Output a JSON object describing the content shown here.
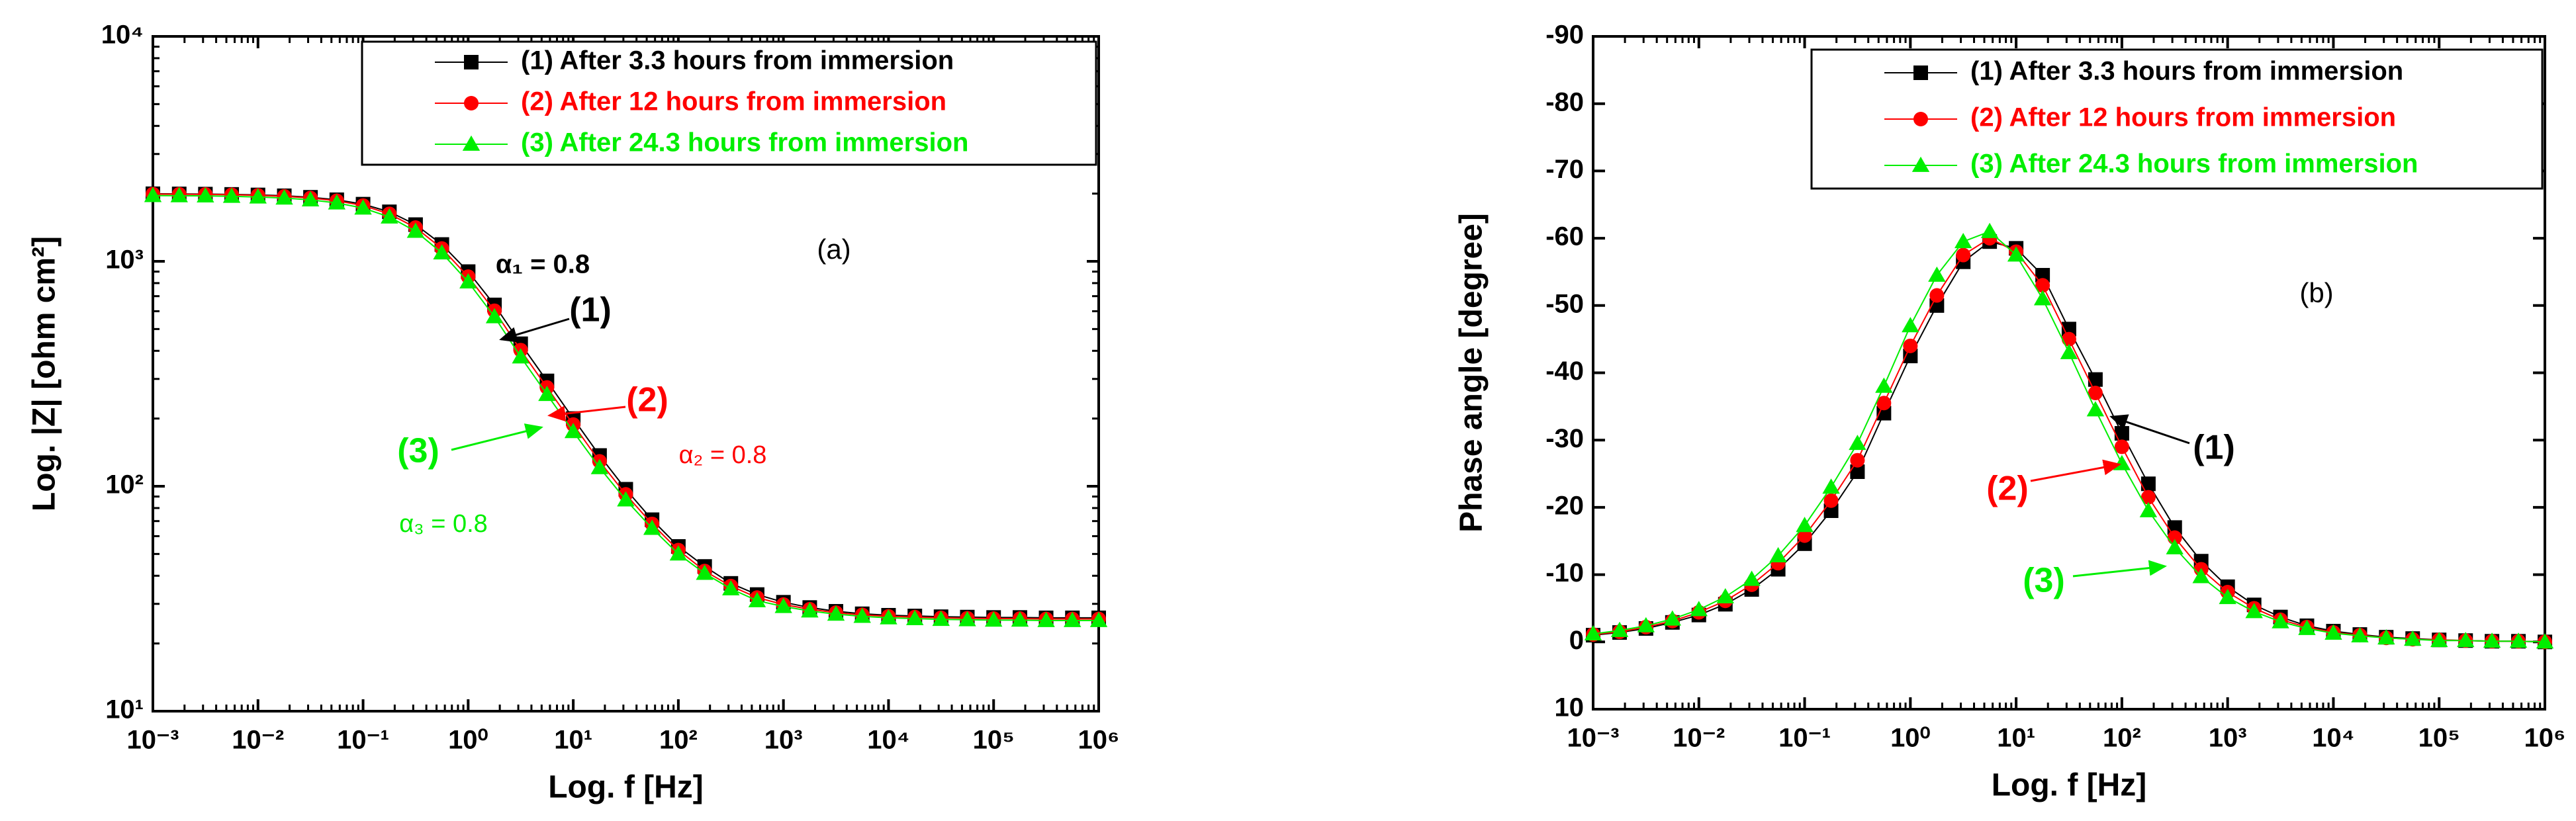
{
  "chart_data": [
    {
      "type": "line",
      "x_label": "Log. f  [Hz]",
      "y_label": "Log. |Z| [ohm cm²]",
      "xlog": true,
      "ylog": true,
      "xlim": [
        0.001,
        1000000
      ],
      "ylim": [
        10,
        10000
      ],
      "xticks": [
        {
          "value": 0.001,
          "label": "10⁻³"
        },
        {
          "value": 0.01,
          "label": "10⁻²"
        },
        {
          "value": 0.1,
          "label": "10⁻¹"
        },
        {
          "value": 1,
          "label": "10⁰"
        },
        {
          "value": 10,
          "label": "10¹"
        },
        {
          "value": 100,
          "label": "10²"
        },
        {
          "value": 1000,
          "label": "10³"
        },
        {
          "value": 10000,
          "label": "10⁴"
        },
        {
          "value": 100000,
          "label": "10⁵"
        },
        {
          "value": 1000000,
          "label": "10⁶"
        }
      ],
      "yticks": [
        {
          "value": 10,
          "label": "10¹"
        },
        {
          "value": 100,
          "label": "10²"
        },
        {
          "value": 1000,
          "label": "10³"
        },
        {
          "value": 10000,
          "label": "10⁴"
        }
      ],
      "legend": "top-right",
      "x": [
        0.001,
        0.00178,
        0.00316,
        0.00562,
        0.01,
        0.0178,
        0.0316,
        0.0562,
        0.1,
        0.178,
        0.316,
        0.562,
        1,
        1.78,
        3.16,
        5.62,
        10,
        17.8,
        31.6,
        56.2,
        100,
        178,
        316,
        562,
        1000,
        1780,
        3160,
        5620,
        10000,
        17800,
        31600,
        56200,
        100000,
        178000,
        316000,
        562000,
        1000000
      ],
      "series": [
        {
          "name": "(1) After 3.3 hours from immersion",
          "color": "#000000",
          "marker": "square",
          "values": [
            1997,
            1994,
            1990,
            1984,
            1973,
            1956,
            1926,
            1878,
            1795,
            1660,
            1456,
            1188,
            900,
            640,
            430,
            294,
            200,
            137,
            97,
            71,
            54,
            44,
            37,
            33,
            30.5,
            28.9,
            27.8,
            27.1,
            26.7,
            26.5,
            26.3,
            26.2,
            26.1,
            26.1,
            26,
            26,
            26
          ]
        },
        {
          "name": "(2) After 12 hours from immersion",
          "color": "#ff0000",
          "marker": "circle",
          "values": [
            1990,
            1987,
            1983,
            1976,
            1964,
            1945,
            1912,
            1858,
            1770,
            1625,
            1412,
            1140,
            855,
            603,
            403,
            275,
            188,
            129,
            92,
            68,
            52,
            42,
            36,
            32,
            29.8,
            28.4,
            27.4,
            26.8,
            26.4,
            26.2,
            26.0,
            25.9,
            25.8,
            25.8,
            25.7,
            25.7,
            25.7
          ]
        },
        {
          "name": "(3) After 24.3 hours from immersion",
          "color": "#00ee00",
          "marker": "triangle",
          "values": [
            1960,
            1957,
            1953,
            1945,
            1932,
            1911,
            1876,
            1818,
            1725,
            1575,
            1360,
            1090,
            810,
            567,
            376,
            256,
            175,
            121,
            87,
            65,
            50,
            41,
            35,
            31,
            29.2,
            27.9,
            27.0,
            26.4,
            26.0,
            25.8,
            25.6,
            25.5,
            25.4,
            25.4,
            25.3,
            25.3,
            25.3
          ]
        }
      ],
      "annotations": [
        {
          "text": "(a)",
          "color": "#000000"
        },
        {
          "text": "α₁ = 0.8",
          "color": "#000000"
        },
        {
          "text": "(1)",
          "color": "#000000"
        },
        {
          "text": "(2)",
          "color": "#ff0000"
        },
        {
          "text": "(3)",
          "color": "#00ee00"
        },
        {
          "text": "α₂ = 0.8",
          "color": "#ff0000"
        },
        {
          "text": "α₃ = 0.8",
          "color": "#00ee00"
        }
      ]
    },
    {
      "type": "line",
      "x_label": "Log. f [Hz]",
      "y_label": "Phase angle [degree]",
      "xlog": true,
      "ylog": false,
      "xlim": [
        0.001,
        1000000
      ],
      "ylim": [
        10,
        -90
      ],
      "xticks": [
        {
          "value": 0.001,
          "label": "10⁻³"
        },
        {
          "value": 0.01,
          "label": "10⁻²"
        },
        {
          "value": 0.1,
          "label": "10⁻¹"
        },
        {
          "value": 1,
          "label": "10⁰"
        },
        {
          "value": 10,
          "label": "10¹"
        },
        {
          "value": 100,
          "label": "10²"
        },
        {
          "value": 1000,
          "label": "10³"
        },
        {
          "value": 10000,
          "label": "10⁴"
        },
        {
          "value": 100000,
          "label": "10⁵"
        },
        {
          "value": 1000000,
          "label": "10⁶"
        }
      ],
      "yticks": [
        -90,
        -80,
        -70,
        -60,
        -50,
        -40,
        -30,
        -20,
        -10,
        0,
        10
      ],
      "legend": "top-right",
      "x": [
        0.001,
        0.00178,
        0.00316,
        0.00562,
        0.01,
        0.0178,
        0.0316,
        0.0562,
        0.1,
        0.178,
        0.316,
        0.562,
        1,
        1.78,
        3.16,
        5.62,
        10,
        17.8,
        31.6,
        56.2,
        100,
        178,
        316,
        562,
        1000,
        1780,
        3160,
        5620,
        10000,
        17800,
        31600,
        56200,
        100000,
        178000,
        316000,
        562000,
        1000000
      ],
      "series": [
        {
          "name": "(1) After 3.3 hours from immersion",
          "color": "#000000",
          "marker": "square",
          "values": [
            -1.0,
            -1.4,
            -2.0,
            -2.9,
            -4.0,
            -5.6,
            -7.8,
            -10.8,
            -14.6,
            -19.5,
            -25.3,
            -34,
            -42.5,
            -50,
            -56.5,
            -59.5,
            -58.5,
            -54.5,
            -46.5,
            -39,
            -31,
            -23.5,
            -17,
            -12,
            -8.2,
            -5.5,
            -3.7,
            -2.4,
            -1.6,
            -1.1,
            -0.7,
            -0.5,
            -0.3,
            -0.2,
            -0.1,
            -0.1,
            0
          ]
        },
        {
          "name": "(2) After 12 hours from immersion",
          "color": "#ff0000",
          "marker": "circle",
          "values": [
            -1.1,
            -1.5,
            -2.2,
            -3.1,
            -4.4,
            -6.1,
            -8.5,
            -11.7,
            -15.8,
            -21,
            -27,
            -35.5,
            -44,
            -51.5,
            -57.5,
            -60,
            -58,
            -53,
            -45,
            -37,
            -29,
            -21.5,
            -15.5,
            -10.8,
            -7.4,
            -5,
            -3.3,
            -2.2,
            -1.4,
            -1,
            -0.6,
            -0.4,
            -0.3,
            -0.2,
            -0.1,
            -0.1,
            0
          ]
        },
        {
          "name": "(3) After 24.3 hours from immersion",
          "color": "#00ee00",
          "marker": "triangle",
          "values": [
            -1.2,
            -1.7,
            -2.4,
            -3.4,
            -4.8,
            -6.7,
            -9.3,
            -12.8,
            -17.3,
            -23,
            -29.5,
            -38,
            -47,
            -54.5,
            -59.5,
            -61,
            -57.5,
            -51,
            -43,
            -34.5,
            -26.5,
            -19.5,
            -14,
            -9.7,
            -6.6,
            -4.5,
            -3,
            -2,
            -1.3,
            -0.9,
            -0.6,
            -0.4,
            -0.2,
            -0.2,
            -0.1,
            -0.1,
            0
          ]
        }
      ],
      "annotations": [
        {
          "text": "(b)",
          "color": "#000000"
        },
        {
          "text": "(1)",
          "color": "#000000"
        },
        {
          "text": "(2)",
          "color": "#ff0000"
        },
        {
          "text": "(3)",
          "color": "#00ee00"
        }
      ]
    }
  ]
}
